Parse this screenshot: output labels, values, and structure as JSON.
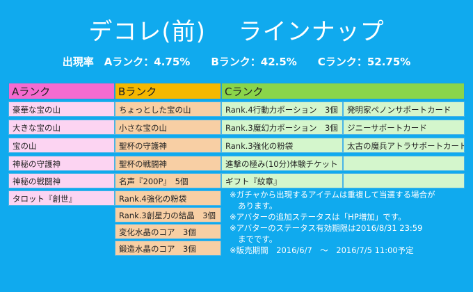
{
  "title": "デコレ(前)　 ラインナップ",
  "rates": "出現率　Aランク：4.75%　　Bランク：42.5%　　Cランク：52.75%",
  "colors": {
    "background": "#10aaee",
    "a_header": "#f56bd0",
    "b_header": "#f5b800",
    "c_header": "#8ad54a"
  },
  "table": {
    "a_header": "Aランク",
    "b_header": "Bランク",
    "c_header": "Cランク",
    "a_items": [
      "豪華な宝の山",
      "大きな宝の山",
      "宝の山",
      "神秘の守護神",
      "神秘の戦闘神",
      "タロット『創世』"
    ],
    "b_items": [
      "ちょっとした宝の山",
      "小さな宝の山",
      "聖杯の守護神",
      "聖杯の戦闘神",
      "名声『200P』　5個",
      "Rank.4強化の粉袋",
      "Rank.3創星力の結晶　3個",
      "変化水晶のコア　3個",
      "鍛造水晶のコア　3個"
    ],
    "c_left": [
      "Rank.4行動力ポーション　3個",
      "Rank.3魔幻力ポーション　3個",
      "Rank.3強化の粉袋",
      "進撃の極み(10分)体験チケット",
      "ギフト『紋章』"
    ],
    "c_right": [
      "発明家ペノンサポートカード",
      "ジニーサポートカード",
      "太古の魔兵アトラサポートカード",
      "",
      ""
    ]
  },
  "notes": [
    "※ガチャから出現するアイテムは重複して当選する場合が",
    "あります。",
    "※アバターの追加ステータスは「HP増加」です。",
    "※アバターのステータス有効期限は2016/8/31 23:59",
    "までです。",
    "※販売期間　2016/6/7　～　2016/7/5 11:00予定"
  ]
}
